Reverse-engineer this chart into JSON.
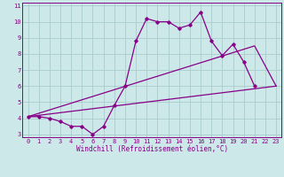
{
  "xlabel": "Windchill (Refroidissement éolien,°C)",
  "bg_color": "#cce8e8",
  "grid_color": "#aacccc",
  "line_color": "#880088",
  "xlim": [
    -0.5,
    23.5
  ],
  "ylim": [
    2.8,
    11.2
  ],
  "xticks": [
    0,
    1,
    2,
    3,
    4,
    5,
    6,
    7,
    8,
    9,
    10,
    11,
    12,
    13,
    14,
    15,
    16,
    17,
    18,
    19,
    20,
    21,
    22,
    23
  ],
  "yticks": [
    3,
    4,
    5,
    6,
    7,
    8,
    9,
    10,
    11
  ],
  "wiggly_x": [
    0,
    1,
    2,
    3,
    4,
    5,
    6,
    7,
    8,
    9,
    10,
    11,
    12,
    13,
    14,
    15,
    16,
    17,
    18,
    19,
    20,
    21
  ],
  "wiggly_y": [
    4.1,
    4.1,
    4.0,
    3.8,
    3.5,
    3.5,
    3.0,
    3.5,
    4.8,
    6.0,
    8.8,
    10.2,
    10.0,
    10.0,
    9.6,
    9.8,
    10.6,
    8.8,
    7.9,
    8.6,
    7.5,
    6.0
  ],
  "lower_line_x": [
    0,
    23
  ],
  "lower_line_y": [
    4.1,
    6.0
  ],
  "upper_line_x": [
    0,
    21,
    23
  ],
  "upper_line_y": [
    4.1,
    8.5,
    6.0
  ],
  "xlabel_fontsize": 5.5,
  "tick_fontsize": 5
}
